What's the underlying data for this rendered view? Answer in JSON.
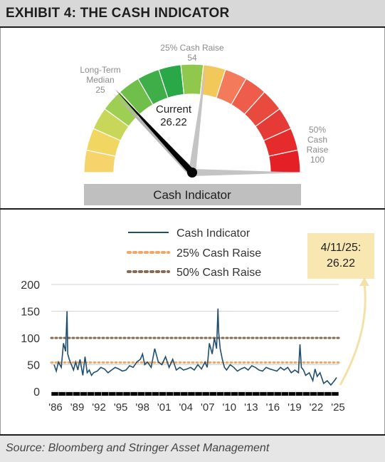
{
  "title": "EXHIBIT 4: THE CASH INDICATOR",
  "source": "Source: Bloomberg and Stringer Asset Management",
  "gauge": {
    "max": 100,
    "current_label_1": "Current",
    "current_label_2": "26.22",
    "current_value": 26.22,
    "median_label_1": "Long-Term",
    "median_label_2": "Median",
    "median_label_3": "25",
    "median_value": 25,
    "raise25_label_1": "25% Cash Raise",
    "raise25_label_2": "54",
    "raise25_value": 54,
    "raise50_label_1": "50%",
    "raise50_label_2": "Cash",
    "raise50_label_3": "Raise",
    "raise50_label_4": "100",
    "raise50_value": 100,
    "caption": "Cash Indicator"
  },
  "callout": {
    "line1": "4/11/25:",
    "line2": "26.22"
  },
  "chart_data": {
    "type": "line",
    "ylim": [
      0,
      200
    ],
    "yticks": [
      "200",
      "150",
      "100",
      "50",
      "0"
    ],
    "xticks": [
      "'86",
      "'89",
      "'92",
      "'95",
      "'98",
      "'01",
      "'04",
      "'07",
      "'10",
      "'13",
      "'16",
      "'19",
      "'22",
      "'25"
    ],
    "legend": [
      "Cash Indicator",
      "25% Cash Raise",
      "50% Cash Raise"
    ],
    "series": [
      {
        "name": "Cash Indicator",
        "color": "#1f4e6e",
        "x": [
          1986.0,
          1986.3,
          1986.6,
          1987.0,
          1987.3,
          1987.6,
          1987.8,
          1987.9,
          1988.1,
          1988.4,
          1988.7,
          1989.0,
          1989.3,
          1989.6,
          1990.0,
          1990.3,
          1990.6,
          1990.9,
          1991.2,
          1991.5,
          1992.0,
          1992.5,
          1993.0,
          1993.5,
          1994.0,
          1994.5,
          1995.0,
          1995.5,
          1996.0,
          1996.5,
          1997.0,
          1997.5,
          1998.0,
          1998.3,
          1998.6,
          1999.0,
          1999.5,
          2000.0,
          2000.5,
          2001.0,
          2001.5,
          2002.0,
          2002.5,
          2003.0,
          2003.5,
          2004.0,
          2004.5,
          2005.0,
          2005.5,
          2006.0,
          2006.5,
          2007.0,
          2007.3,
          2007.6,
          2008.0,
          2008.3,
          2008.6,
          2008.8,
          2008.9,
          2009.1,
          2009.4,
          2009.7,
          2010.0,
          2010.5,
          2011.0,
          2011.5,
          2012.0,
          2012.5,
          2013.0,
          2013.5,
          2014.0,
          2014.5,
          2015.0,
          2015.5,
          2016.0,
          2016.5,
          2017.0,
          2017.5,
          2018.0,
          2018.5,
          2019.0,
          2019.5,
          2020.0,
          2020.2,
          2020.4,
          2020.7,
          2021.0,
          2021.5,
          2022.0,
          2022.3,
          2022.6,
          2023.0,
          2023.5,
          2024.0,
          2024.5,
          2025.0,
          2025.3
        ],
        "y": [
          50,
          38,
          55,
          45,
          90,
          75,
          150,
          70,
          60,
          50,
          40,
          55,
          40,
          60,
          30,
          65,
          35,
          40,
          30,
          35,
          38,
          45,
          42,
          35,
          40,
          45,
          42,
          38,
          40,
          48,
          45,
          55,
          60,
          70,
          50,
          55,
          45,
          80,
          55,
          50,
          65,
          45,
          60,
          40,
          45,
          40,
          42,
          45,
          40,
          50,
          42,
          55,
          45,
          90,
          70,
          100,
          80,
          155,
          110,
          80,
          60,
          45,
          40,
          50,
          45,
          38,
          42,
          45,
          40,
          48,
          45,
          40,
          38,
          45,
          42,
          40,
          38,
          45,
          40,
          45,
          35,
          40,
          35,
          88,
          45,
          40,
          30,
          35,
          20,
          42,
          28,
          35,
          15,
          20,
          12,
          20,
          26
        ]
      },
      {
        "name": "25% Cash Raise",
        "color": "#f0a868",
        "values": [
          54
        ]
      },
      {
        "name": "50% Cash Raise",
        "color": "#8a6a4e",
        "values": [
          100
        ]
      }
    ]
  }
}
